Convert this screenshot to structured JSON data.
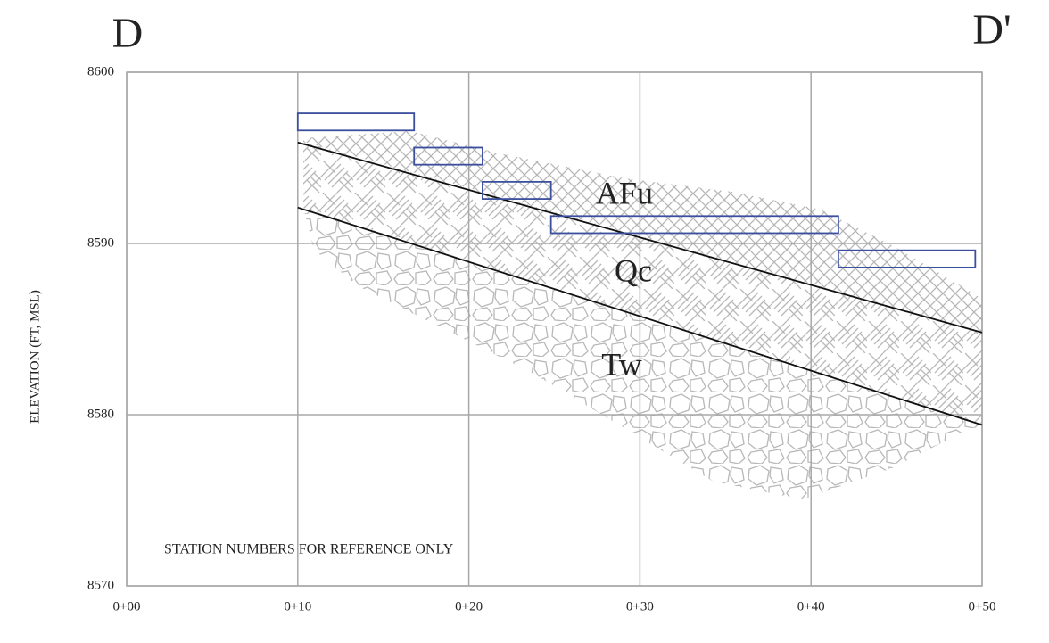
{
  "chart_data": {
    "type": "line",
    "corner_left": "D",
    "corner_right": "D'",
    "ylabel": "ELEVATION (FT, MSL)",
    "note": "STATION NUMBERS FOR REFERENCE ONLY",
    "units": [
      "AFu",
      "Qc",
      "Tw"
    ],
    "xlim": [
      0,
      50
    ],
    "ylim": [
      8570,
      8600
    ],
    "xticks": [
      {
        "value": 0,
        "label": "0+00"
      },
      {
        "value": 10,
        "label": "0+10"
      },
      {
        "value": 20,
        "label": "0+20"
      },
      {
        "value": 30,
        "label": "0+30"
      },
      {
        "value": 40,
        "label": "0+40"
      },
      {
        "value": 50,
        "label": "0+50"
      }
    ],
    "yticks": [
      8570,
      8580,
      8590,
      8600
    ],
    "grid": true,
    "series": [
      {
        "color": "#111111",
        "x": [
          10,
          50
        ],
        "values": [
          8595.9,
          8584.8
        ]
      },
      {
        "color": "#111111",
        "x": [
          10,
          50
        ],
        "values": [
          8592.1,
          8579.4
        ]
      }
    ],
    "boxes": {
      "color": "#3b4f9e",
      "x_start": [
        10,
        16.8,
        20.8,
        24.8,
        41.6
      ],
      "x_end": [
        16.8,
        20.8,
        24.8,
        41.6,
        49.6
      ],
      "top": [
        8597.6,
        8595.6,
        8593.6,
        8591.6,
        8589.6
      ],
      "bottom": [
        8596.6,
        8594.6,
        8592.6,
        8590.6,
        8588.6
      ]
    }
  }
}
